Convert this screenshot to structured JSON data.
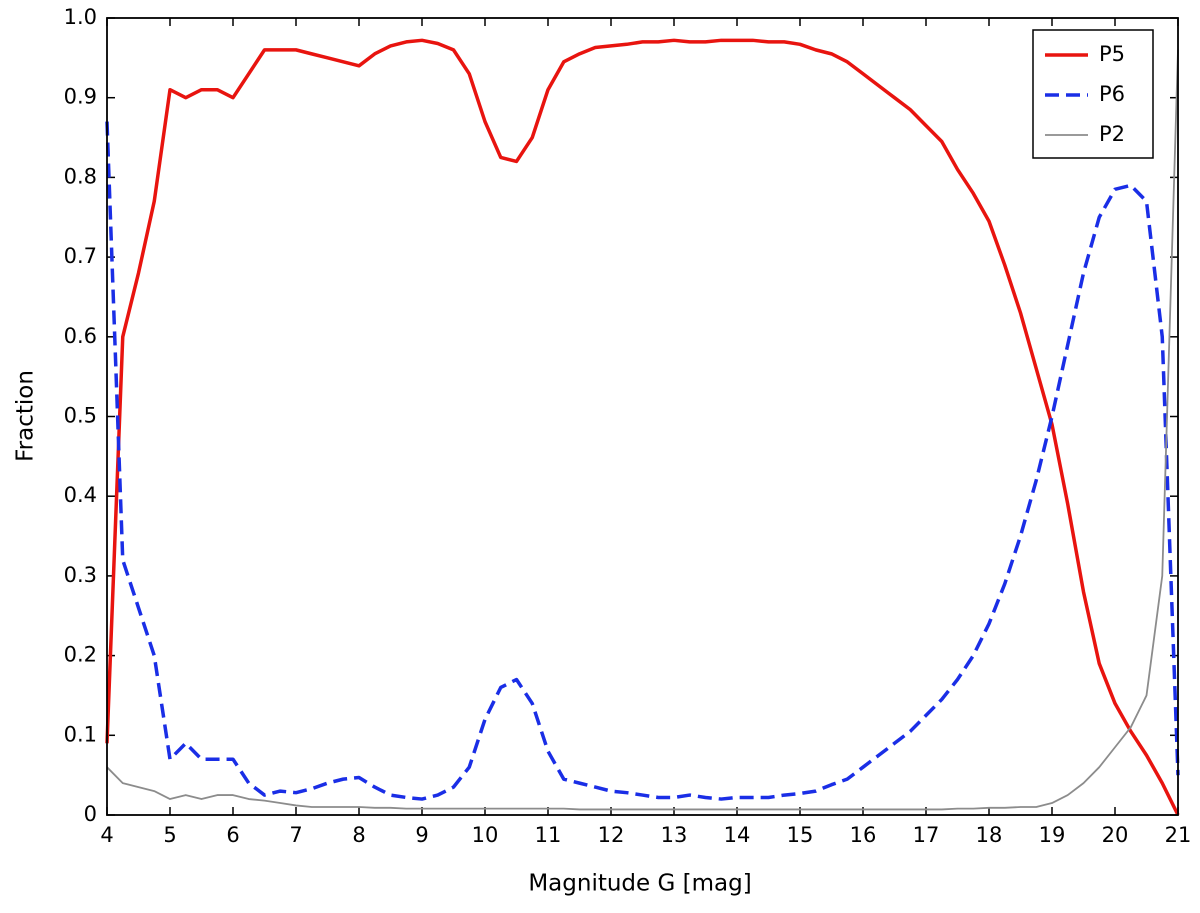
{
  "chart_data": {
    "type": "line",
    "x_label": "Magnitude G [mag]",
    "y_label": "Fraction",
    "x": [
      4,
      4.25,
      4.5,
      4.75,
      5,
      5.25,
      5.5,
      5.75,
      6,
      6.25,
      6.5,
      6.75,
      7,
      7.25,
      7.5,
      7.75,
      8,
      8.25,
      8.5,
      8.75,
      9,
      9.25,
      9.5,
      9.75,
      10,
      10.25,
      10.5,
      10.75,
      11,
      11.25,
      11.5,
      11.75,
      12,
      12.25,
      12.5,
      12.75,
      13,
      13.25,
      13.5,
      13.75,
      14,
      14.25,
      14.5,
      14.75,
      15,
      15.25,
      15.5,
      15.75,
      16,
      16.25,
      16.5,
      16.75,
      17,
      17.25,
      17.5,
      17.75,
      18,
      18.25,
      18.5,
      18.75,
      19,
      19.25,
      19.5,
      19.75,
      20,
      20.25,
      20.5,
      20.75,
      21
    ],
    "series": [
      {
        "name": "P5",
        "color": "#e8140f",
        "dash": false,
        "width": 3.5,
        "values": [
          0.09,
          0.6,
          0.68,
          0.77,
          0.91,
          0.9,
          0.91,
          0.91,
          0.9,
          0.93,
          0.96,
          0.96,
          0.96,
          0.955,
          0.95,
          0.945,
          0.94,
          0.955,
          0.965,
          0.97,
          0.972,
          0.968,
          0.96,
          0.93,
          0.87,
          0.825,
          0.82,
          0.85,
          0.91,
          0.945,
          0.955,
          0.963,
          0.965,
          0.967,
          0.97,
          0.97,
          0.972,
          0.97,
          0.97,
          0.972,
          0.972,
          0.972,
          0.97,
          0.97,
          0.967,
          0.96,
          0.955,
          0.945,
          0.93,
          0.915,
          0.9,
          0.885,
          0.865,
          0.845,
          0.81,
          0.78,
          0.745,
          0.69,
          0.63,
          0.56,
          0.49,
          0.39,
          0.28,
          0.19,
          0.14,
          0.105,
          0.075,
          0.04,
          0
        ]
      },
      {
        "name": "P6",
        "color": "#1a2ee6",
        "dash": true,
        "width": 3.5,
        "values": [
          0.87,
          0.32,
          0.26,
          0.2,
          0.07,
          0.09,
          0.07,
          0.07,
          0.07,
          0.04,
          0.025,
          0.03,
          0.028,
          0.033,
          0.04,
          0.045,
          0.047,
          0.035,
          0.025,
          0.022,
          0.02,
          0.025,
          0.035,
          0.06,
          0.12,
          0.16,
          0.17,
          0.14,
          0.08,
          0.045,
          0.04,
          0.035,
          0.03,
          0.028,
          0.025,
          0.022,
          0.022,
          0.025,
          0.022,
          0.02,
          0.022,
          0.022,
          0.022,
          0.025,
          0.027,
          0.03,
          0.038,
          0.045,
          0.06,
          0.075,
          0.09,
          0.105,
          0.125,
          0.145,
          0.17,
          0.2,
          0.24,
          0.29,
          0.35,
          0.42,
          0.5,
          0.59,
          0.68,
          0.75,
          0.785,
          0.79,
          0.77,
          0.6,
          0.05
        ]
      },
      {
        "name": "P2",
        "color": "#8c8c8c",
        "dash": false,
        "width": 1.8,
        "values": [
          0.06,
          0.04,
          0.035,
          0.03,
          0.02,
          0.025,
          0.02,
          0.025,
          0.025,
          0.02,
          0.018,
          0.015,
          0.012,
          0.01,
          0.01,
          0.01,
          0.01,
          0.009,
          0.009,
          0.008,
          0.008,
          0.008,
          0.008,
          0.008,
          0.008,
          0.008,
          0.008,
          0.008,
          0.008,
          0.008,
          0.007,
          0.007,
          0.007,
          0.007,
          0.007,
          0.007,
          0.007,
          0.007,
          0.007,
          0.007,
          0.007,
          0.007,
          0.007,
          0.007,
          0.007,
          0.007,
          0.007,
          0.007,
          0.007,
          0.007,
          0.007,
          0.007,
          0.007,
          0.007,
          0.008,
          0.008,
          0.009,
          0.009,
          0.01,
          0.01,
          0.015,
          0.025,
          0.04,
          0.06,
          0.085,
          0.11,
          0.15,
          0.3,
          0.96
        ]
      }
    ],
    "xlim": [
      4,
      21
    ],
    "ylim": [
      0,
      1
    ],
    "xticks": [
      4,
      5,
      6,
      7,
      8,
      9,
      10,
      11,
      12,
      13,
      14,
      15,
      16,
      17,
      18,
      19,
      20,
      21
    ],
    "yticks": [
      0,
      0.1,
      0.2,
      0.3,
      0.4,
      0.5,
      0.6,
      0.7,
      0.8,
      0.9,
      {
        "value": 1,
        "label": "1.0"
      }
    ],
    "grid": false,
    "legend": "upper right"
  }
}
